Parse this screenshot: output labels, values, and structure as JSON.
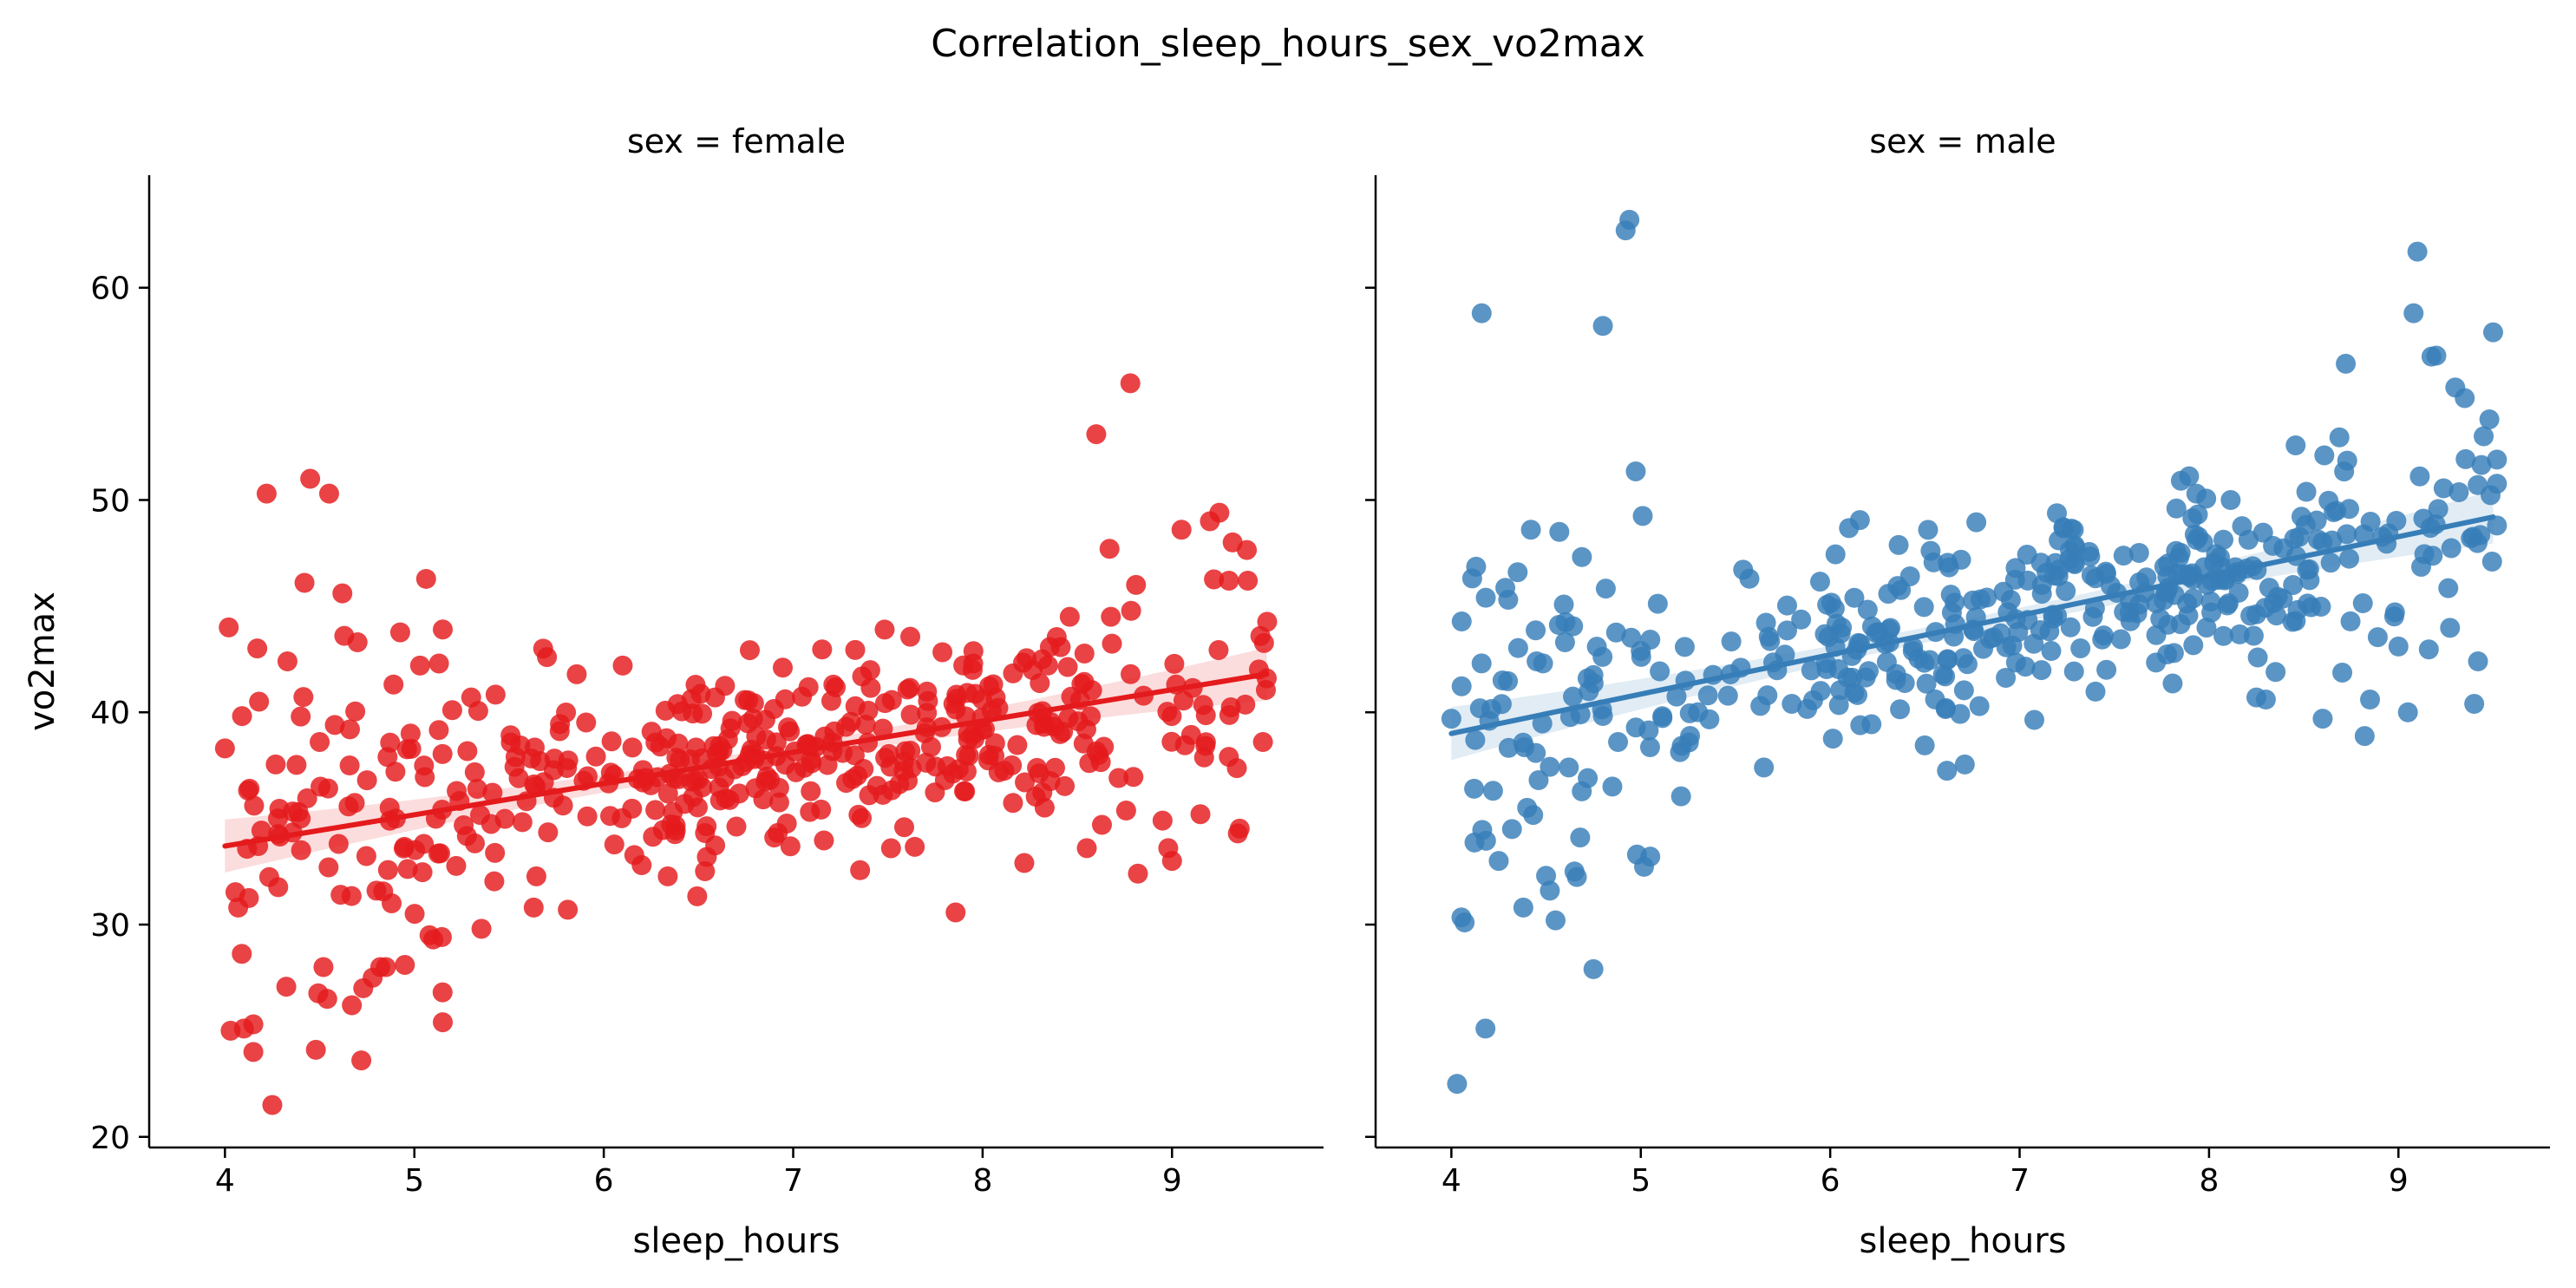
{
  "figure": {
    "title": "Correlation_sleep_hours_sex_vo2max"
  },
  "chart_data": {
    "type": "scatter",
    "title": "Correlation_sleep_hours_sex_vo2max",
    "xlabel": "sleep_hours",
    "ylabel": "vo2max",
    "xlim": [
      3.6,
      9.8
    ],
    "ylim": [
      19.5,
      65.3
    ],
    "xticks": [
      4,
      5,
      6,
      7,
      8,
      9
    ],
    "yticks": [
      20,
      30,
      40,
      50,
      60
    ],
    "grid": false,
    "shared_y": true,
    "panels": [
      {
        "title": "sex = female",
        "color": "#e41a1c",
        "regression": {
          "x": [
            4.0,
            9.5
          ],
          "y": [
            33.7,
            41.8
          ]
        },
        "outliers": [
          [
            4.0,
            38.3
          ],
          [
            4.02,
            44.0
          ],
          [
            4.03,
            25.0
          ],
          [
            4.07,
            30.8
          ],
          [
            4.1,
            25.1
          ],
          [
            4.13,
            36.4
          ],
          [
            4.15,
            24.0
          ],
          [
            4.15,
            25.3
          ],
          [
            4.18,
            40.5
          ],
          [
            4.22,
            50.3
          ],
          [
            4.25,
            21.5
          ],
          [
            4.28,
            35.0
          ],
          [
            4.33,
            42.4
          ],
          [
            4.4,
            35.0
          ],
          [
            4.42,
            46.1
          ],
          [
            4.4,
            39.8
          ],
          [
            4.45,
            51.0
          ],
          [
            4.48,
            24.1
          ],
          [
            4.5,
            38.6
          ],
          [
            4.52,
            28.0
          ],
          [
            4.54,
            26.5
          ],
          [
            4.55,
            50.3
          ],
          [
            4.58,
            39.4
          ],
          [
            4.6,
            33.8
          ],
          [
            4.62,
            45.6
          ],
          [
            4.63,
            43.6
          ],
          [
            4.66,
            39.2
          ],
          [
            4.67,
            26.2
          ],
          [
            4.7,
            43.3
          ],
          [
            4.72,
            23.6
          ],
          [
            4.73,
            27.0
          ],
          [
            4.75,
            36.8
          ],
          [
            4.78,
            27.5
          ],
          [
            4.8,
            31.6
          ],
          [
            4.82,
            28.0
          ],
          [
            4.85,
            28.0
          ],
          [
            4.88,
            31.0
          ],
          [
            4.9,
            37.2
          ],
          [
            4.95,
            28.1
          ],
          [
            4.98,
            39.0
          ],
          [
            5.03,
            42.2
          ],
          [
            5.05,
            33.8
          ],
          [
            5.08,
            29.5
          ],
          [
            5.1,
            29.3
          ],
          [
            5.13,
            42.3
          ],
          [
            5.15,
            43.9
          ],
          [
            5.15,
            25.4
          ],
          [
            5.2,
            40.1
          ],
          [
            5.3,
            40.7
          ],
          [
            5.63,
            30.8
          ],
          [
            5.68,
            43.0
          ],
          [
            5.7,
            42.6
          ],
          [
            5.81,
            30.7
          ],
          [
            6.1,
            42.2
          ],
          [
            6.2,
            32.8
          ],
          [
            6.9,
            34.1
          ],
          [
            8.22,
            32.9
          ],
          [
            8.46,
            44.5
          ],
          [
            8.55,
            33.6
          ],
          [
            8.6,
            53.1
          ],
          [
            8.63,
            34.7
          ],
          [
            8.67,
            47.7
          ],
          [
            8.78,
            55.5
          ],
          [
            8.81,
            46.0
          ],
          [
            8.82,
            32.4
          ],
          [
            8.95,
            34.9
          ],
          [
            8.98,
            33.6
          ],
          [
            9.0,
            33.0
          ],
          [
            9.05,
            48.6
          ],
          [
            9.15,
            35.2
          ],
          [
            9.2,
            49.0
          ],
          [
            9.25,
            49.4
          ],
          [
            9.3,
            37.9
          ],
          [
            9.32,
            48.0
          ],
          [
            9.4,
            46.2
          ],
          [
            9.48,
            38.6
          ],
          [
            9.5,
            41.6
          ]
        ]
      },
      {
        "title": "sex = male",
        "color": "#377eb8",
        "regression": {
          "x": [
            4.0,
            9.5
          ],
          "y": [
            39.0,
            49.2
          ]
        },
        "outliers": [
          [
            4.0,
            39.7
          ],
          [
            4.03,
            22.5
          ],
          [
            4.07,
            30.1
          ],
          [
            4.12,
            36.4
          ],
          [
            4.16,
            58.8
          ],
          [
            4.18,
            25.1
          ],
          [
            4.2,
            39.6
          ],
          [
            4.22,
            36.3
          ],
          [
            4.25,
            33.0
          ],
          [
            4.27,
            41.5
          ],
          [
            4.3,
            45.3
          ],
          [
            4.32,
            34.5
          ],
          [
            4.35,
            46.6
          ],
          [
            4.38,
            30.8
          ],
          [
            4.4,
            35.5
          ],
          [
            4.42,
            48.6
          ],
          [
            4.45,
            42.4
          ],
          [
            4.5,
            32.3
          ],
          [
            4.52,
            31.6
          ],
          [
            4.55,
            30.2
          ],
          [
            4.57,
            48.5
          ],
          [
            4.6,
            43.3
          ],
          [
            4.62,
            37.4
          ],
          [
            4.65,
            32.5
          ],
          [
            4.68,
            34.1
          ],
          [
            4.72,
            36.9
          ],
          [
            4.75,
            27.9
          ],
          [
            4.8,
            58.2
          ],
          [
            4.85,
            36.5
          ],
          [
            4.88,
            38.6
          ],
          [
            4.92,
            62.7
          ],
          [
            4.94,
            63.2
          ],
          [
            4.98,
            33.3
          ],
          [
            5.05,
            33.2
          ],
          [
            5.65,
            37.4
          ],
          [
            8.25,
            40.7
          ],
          [
            8.3,
            40.6
          ],
          [
            8.6,
            39.7
          ],
          [
            8.85,
            40.6
          ],
          [
            9.0,
            43.1
          ],
          [
            9.05,
            40.0
          ],
          [
            9.1,
            61.7
          ],
          [
            9.08,
            58.8
          ],
          [
            9.2,
            56.8
          ],
          [
            9.3,
            55.3
          ],
          [
            9.35,
            54.8
          ],
          [
            9.4,
            40.4
          ],
          [
            9.42,
            42.4
          ],
          [
            9.45,
            53.0
          ],
          [
            9.48,
            53.8
          ],
          [
            9.5,
            57.9
          ],
          [
            9.52,
            48.8
          ]
        ]
      }
    ]
  }
}
